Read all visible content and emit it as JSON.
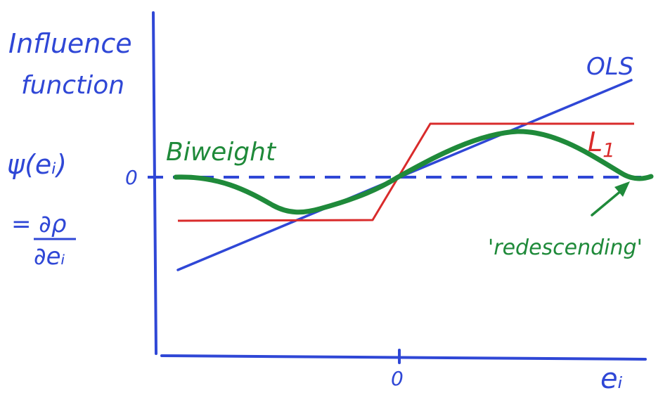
{
  "y_axis_label": {
    "line1": "Influence",
    "line2": "function",
    "line3": "ψ(eᵢ)",
    "line4": "= ∂ρ",
    "line5": "∂eᵢ"
  },
  "x_axis_label": "eᵢ",
  "origin_labels": {
    "y_zero": "0",
    "x_zero": "0"
  },
  "curves": [
    {
      "name": "OLS",
      "color": "#2f47d6"
    },
    {
      "name": "L",
      "subscript": "1",
      "color": "#d92b2b"
    },
    {
      "name": "Biweight",
      "color": "#1f8a3a"
    }
  ],
  "annotation": "'redescending'",
  "colors": {
    "axis": "#2f47d6",
    "ols": "#2f47d6",
    "l1": "#d92b2b",
    "biweight": "#1f8a3a",
    "dashed_zero": "#2f47d6"
  }
}
